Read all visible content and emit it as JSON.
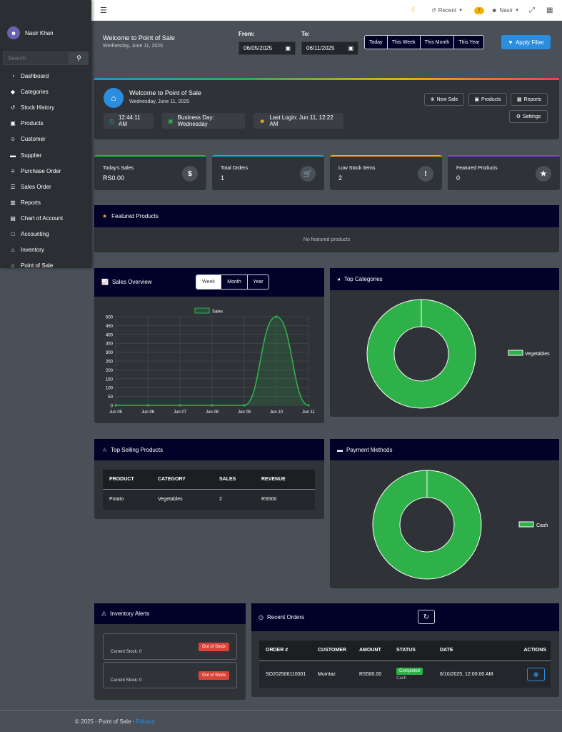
{
  "topbar": {
    "menu_icon": "hamburger-icon",
    "recent_label": "Recent",
    "notif_count": "2",
    "user_label": "Nasir"
  },
  "sidebar": {
    "user_name": "Nasir Khan",
    "search_placeholder": "Search",
    "items": [
      {
        "label": "Dashboard",
        "icon": "dashboard-icon"
      },
      {
        "label": "Categories",
        "icon": "tags-icon"
      },
      {
        "label": "Stock History",
        "icon": "history-icon"
      },
      {
        "label": "Products",
        "icon": "boxes-icon"
      },
      {
        "label": "Customer",
        "icon": "users-icon"
      },
      {
        "label": "Supplier",
        "icon": "truck-icon"
      },
      {
        "label": "Purchase Order",
        "icon": "cart-icon"
      },
      {
        "label": "Sales Order",
        "icon": "list-icon"
      },
      {
        "label": "Reports",
        "icon": "chart-icon"
      },
      {
        "label": "Chart of Account",
        "icon": "book-icon"
      },
      {
        "label": "Accounting",
        "icon": "file-icon"
      },
      {
        "label": "Inventory",
        "icon": "warehouse-icon"
      },
      {
        "label": "Point of Sale",
        "icon": "store-icon"
      }
    ]
  },
  "filter": {
    "title": "Welcome to Point of Sale",
    "date": "Wednesday, June 11, 2025",
    "from_label": "From:",
    "from_value": "06/05/2025",
    "to_label": "To:",
    "to_value": "06/11/2025",
    "ranges": [
      "Today",
      "This Week",
      "This Month",
      "This Year"
    ],
    "apply_label": "Apply Filter"
  },
  "welcome": {
    "title": "Welcome to Point of Sale",
    "date": "Wednesday, June 11, 2025",
    "buttons": [
      "New Sale",
      "Products",
      "Reports"
    ],
    "settings_label": "Settings",
    "time": "12:44:11 AM",
    "business_day": "Business Day: Wednesday",
    "last_login": "Last Login: Jun 11, 12:22 AM"
  },
  "stats": [
    {
      "label": "Today's Sales",
      "value": "RS0.00",
      "icon": "dollar-icon",
      "color": "#2fb14a"
    },
    {
      "label": "Total Orders",
      "value": "1",
      "icon": "cart-icon",
      "color": "#23a8c9"
    },
    {
      "label": "Low Stock Items",
      "value": "2",
      "icon": "warning-icon",
      "color": "#f0ad1c"
    },
    {
      "label": "Featured Products",
      "value": "0",
      "icon": "star-icon",
      "color": "#7b4bd1"
    }
  ],
  "featured": {
    "title": "Featured Products",
    "empty_text": "No featured products"
  },
  "sales_overview": {
    "title": "Sales Overview",
    "tabs": [
      "Week",
      "Month",
      "Year"
    ],
    "active_tab": "Week"
  },
  "top_categories": {
    "title": "Top Categories",
    "legend": "Vegetables"
  },
  "top_selling": {
    "title": "Top Selling Products",
    "headers": [
      "PRODUCT",
      "CATEGORY",
      "SALES",
      "REVENUE"
    ],
    "rows": [
      [
        "Potato",
        "Vegetables",
        "2",
        "RS500"
      ]
    ]
  },
  "payment_methods": {
    "title": "Payment Methods",
    "legend": "Cash"
  },
  "inventory_alerts": {
    "title": "Inventory Alerts",
    "items": [
      {
        "stock": "Current Stock: 0",
        "badge": "Out of Stock"
      },
      {
        "stock": "Current Stock: 0",
        "badge": "Out of Stock"
      }
    ]
  },
  "recent_orders": {
    "title": "Recent Orders",
    "headers": [
      "ORDER #",
      "CUSTOMER",
      "AMOUNT",
      "STATUS",
      "DATE",
      "ACTIONS"
    ],
    "rows": [
      {
        "order": "SO202506110001",
        "customer": "Mumtaz",
        "amount": "RS500.00",
        "status": "Completed",
        "method": "Cash",
        "date": "6/10/2025, 12:00:00 AM"
      }
    ]
  },
  "footer": {
    "text": "© 2025 - Point of Sale - ",
    "link": "Privacy"
  },
  "colors": {
    "accent_green": "#2fb14a",
    "header_navy": "#01012a",
    "primary_blue": "#2b8de0"
  },
  "chart_data": [
    {
      "type": "line",
      "title": "",
      "x": [
        "Jun 05",
        "Jun 06",
        "Jun 07",
        "Jun 08",
        "Jun 09",
        "Jun 10",
        "Jun 11"
      ],
      "series": [
        {
          "name": "Sales",
          "values": [
            0,
            0,
            0,
            0,
            0,
            500,
            0
          ]
        }
      ],
      "ylim": [
        0,
        500
      ],
      "yticks": [
        "500",
        "450",
        "400",
        "350",
        "300",
        "250",
        "200",
        "150",
        "100",
        "50",
        "0"
      ],
      "grid": true,
      "legend": "top"
    },
    {
      "type": "pie",
      "categories": [
        "Vegetables"
      ],
      "values": [
        100
      ],
      "legend": "right"
    },
    {
      "type": "pie",
      "categories": [
        "Cash"
      ],
      "values": [
        100
      ],
      "legend": "right"
    }
  ]
}
